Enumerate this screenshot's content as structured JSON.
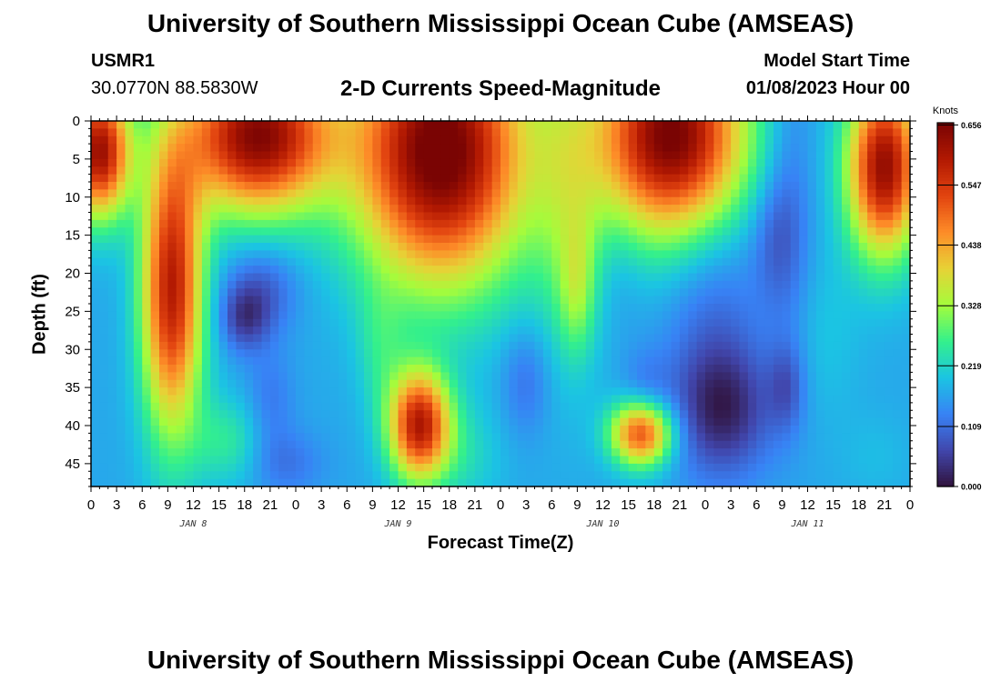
{
  "header": {
    "title": "University of Southern Mississippi Ocean Cube (AMSEAS)",
    "station": "USMR1",
    "coords": "30.0770N  88.5830W",
    "subtitle": "2-D Currents Speed-Magnitude",
    "start_label": "Model Start Time",
    "start_value": "01/08/2023 Hour 00"
  },
  "footer": {
    "title": "University of Southern Mississippi Ocean Cube (AMSEAS)"
  },
  "chart_data": {
    "type": "heatmap",
    "title": "2-D Currents Speed-Magnitude",
    "xlabel": "Forecast Time(Z)",
    "ylabel": "Depth (ft)",
    "xlim": [
      0,
      96
    ],
    "ylim": [
      48,
      0
    ],
    "x_ticks": [
      0,
      3,
      6,
      9,
      12,
      15,
      18,
      21,
      24,
      27,
      30,
      33,
      36,
      39,
      42,
      45,
      48,
      51,
      54,
      57,
      60,
      63,
      66,
      69,
      72,
      75,
      78,
      81,
      84,
      87,
      90,
      93,
      96
    ],
    "x_tick_labels": [
      "0",
      "3",
      "6",
      "9",
      "12",
      "15",
      "18",
      "21",
      "0",
      "3",
      "6",
      "9",
      "12",
      "15",
      "18",
      "21",
      "0",
      "3",
      "6",
      "9",
      "12",
      "15",
      "18",
      "21",
      "0",
      "3",
      "6",
      "9",
      "12",
      "15",
      "18",
      "21",
      "0"
    ],
    "day_labels": [
      {
        "x": 12,
        "label": "JAN 8"
      },
      {
        "x": 36,
        "label": "JAN 9"
      },
      {
        "x": 60,
        "label": "JAN 10"
      },
      {
        "x": 84,
        "label": "JAN 11"
      }
    ],
    "y_ticks": [
      0,
      5,
      10,
      15,
      20,
      25,
      30,
      35,
      40,
      45
    ],
    "y_tick_labels": [
      "0",
      "5",
      "10",
      "15",
      "20",
      "25",
      "30",
      "35",
      "40",
      "45"
    ],
    "colorbar": {
      "label": "Knots",
      "min": 0.0,
      "max": 0.66,
      "ticks": [
        0.0,
        0.109,
        0.219,
        0.328,
        0.438,
        0.547,
        0.656
      ],
      "tick_labels": [
        "0.000",
        "0.109",
        "0.219",
        "0.328",
        "0.438",
        "0.547",
        "0.656"
      ]
    },
    "value_blobs": [
      {
        "t": 1,
        "d": 4,
        "st": 2.5,
        "sd": 6,
        "v": 0.45
      },
      {
        "t": 9.5,
        "d": 22,
        "st": 2.5,
        "sd": 13,
        "v": 0.42
      },
      {
        "t": 19.5,
        "d": 2,
        "st": 6,
        "sd": 7,
        "v": 0.48
      },
      {
        "t": 20,
        "d": 22,
        "st": 3,
        "sd": 4,
        "v": -0.08
      },
      {
        "t": 18,
        "d": 26,
        "st": 2,
        "sd": 3,
        "v": -0.1
      },
      {
        "t": 21,
        "d": 37,
        "st": 2,
        "sd": 5,
        "v": -0.05
      },
      {
        "t": 16,
        "d": 42,
        "st": 3,
        "sd": 4,
        "v": 0.08
      },
      {
        "t": 23,
        "d": 45,
        "st": 3,
        "sd": 3,
        "v": -0.05
      },
      {
        "t": 34,
        "d": 30,
        "st": 2,
        "sd": 6,
        "v": 0.06
      },
      {
        "t": 38.5,
        "d": 40,
        "st": 2.5,
        "sd": 5,
        "v": 0.42
      },
      {
        "t": 41,
        "d": 4,
        "st": 7,
        "sd": 12,
        "v": 0.52
      },
      {
        "t": 44,
        "d": 44,
        "st": 3,
        "sd": 5,
        "v": 0.05
      },
      {
        "t": 51,
        "d": 34,
        "st": 2,
        "sd": 5,
        "v": -0.06
      },
      {
        "t": 56,
        "d": 10,
        "st": 3,
        "sd": 15,
        "v": 0.1
      },
      {
        "t": 57,
        "d": 22,
        "st": 1.5,
        "sd": 6,
        "v": 0.1
      },
      {
        "t": 65,
        "d": 36,
        "st": 2,
        "sd": 4,
        "v": -0.05
      },
      {
        "t": 64.5,
        "d": 41,
        "st": 2.5,
        "sd": 3,
        "v": 0.36
      },
      {
        "t": 62,
        "d": 20,
        "st": 2,
        "sd": 6,
        "v": -0.02
      },
      {
        "t": 68,
        "d": 2,
        "st": 6,
        "sd": 9,
        "v": 0.5
      },
      {
        "t": 74,
        "d": 38,
        "st": 4,
        "sd": 6,
        "v": -0.14
      },
      {
        "t": 73,
        "d": 24,
        "st": 4,
        "sd": 10,
        "v": -0.06
      },
      {
        "t": 80,
        "d": 15,
        "st": 2,
        "sd": 6,
        "v": -0.06
      },
      {
        "t": 81.5,
        "d": 35,
        "st": 1.5,
        "sd": 4,
        "v": -0.07
      },
      {
        "t": 82,
        "d": 10,
        "st": 2,
        "sd": 16,
        "v": -0.05
      },
      {
        "t": 86,
        "d": 28,
        "st": 3,
        "sd": 8,
        "v": 0.03
      },
      {
        "t": 93,
        "d": 6,
        "st": 3,
        "sd": 8,
        "v": 0.46
      },
      {
        "t": 92,
        "d": 44,
        "st": 3,
        "sd": 4,
        "v": 0.02
      }
    ],
    "base_value": 0.17
  }
}
